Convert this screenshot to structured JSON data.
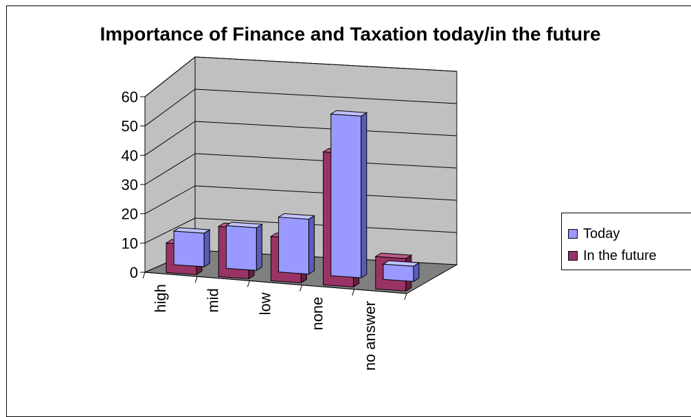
{
  "chart_data": {
    "type": "bar",
    "title": "Importance of Finance and Taxation today/in the future",
    "xlabel": "",
    "ylabel": "",
    "categories": [
      "high",
      "mid",
      "low",
      "none",
      "no answer"
    ],
    "series": [
      {
        "name": "Today",
        "values": [
          11,
          14,
          18,
          53,
          5
        ]
      },
      {
        "name": "In the future",
        "values": [
          10,
          17,
          15,
          45,
          11
        ]
      }
    ],
    "ylim": [
      0,
      60
    ],
    "yticks": [
      "0",
      "10",
      "20",
      "30",
      "40",
      "50",
      "60"
    ],
    "grid": true,
    "legend_position": "right",
    "colors": {
      "today_front": "#9999ff",
      "today_side": "#5b5bb8",
      "today_top": "#c2c2ff",
      "future_front": "#993366",
      "future_side": "#64213f",
      "future_top": "#b85c86",
      "walls": "#c0c0c0",
      "floor": "#808080"
    }
  }
}
